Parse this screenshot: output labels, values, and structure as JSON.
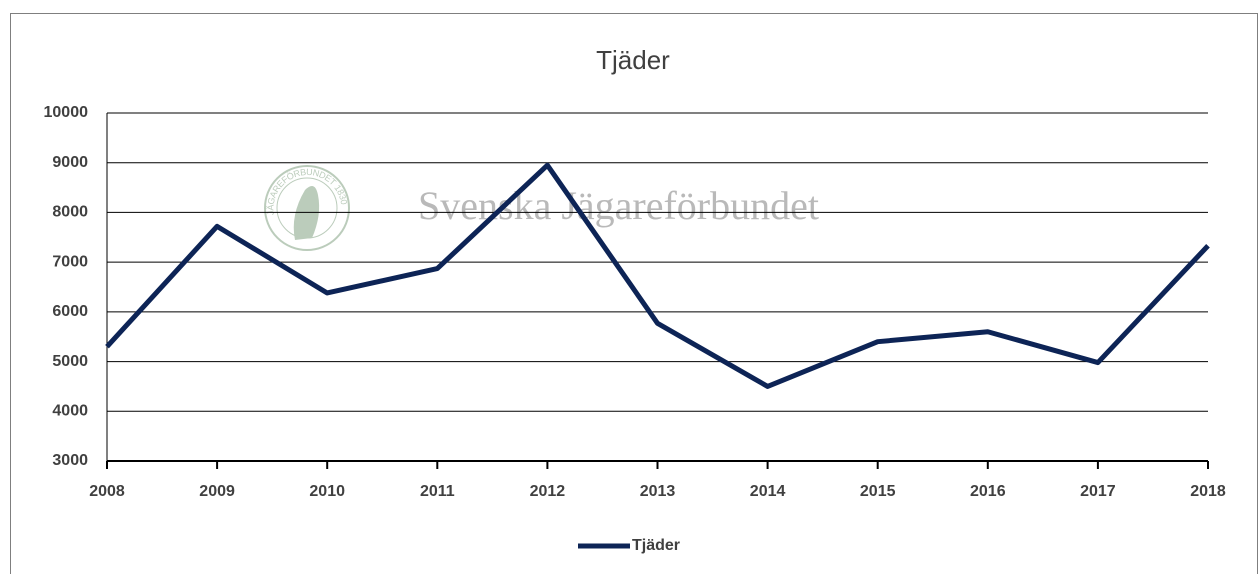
{
  "chart_data": {
    "type": "line",
    "title": "Tjäder",
    "x": [
      2008,
      2009,
      2010,
      2011,
      2012,
      2013,
      2014,
      2015,
      2016,
      2017,
      2018
    ],
    "series": [
      {
        "name": "Tjäder",
        "color": "#0d2456",
        "values": [
          5300,
          7720,
          6380,
          6870,
          8950,
          5770,
          4500,
          5400,
          5600,
          4980,
          7330
        ]
      }
    ],
    "xlim": [
      2008,
      2018
    ],
    "xticks": [
      2008,
      2009,
      2010,
      2011,
      2012,
      2013,
      2014,
      2015,
      2016,
      2017,
      2018
    ],
    "ylim": [
      3000,
      10000
    ],
    "yticks": [
      3000,
      4000,
      5000,
      6000,
      7000,
      8000,
      9000,
      10000
    ],
    "grid": true,
    "legend": "bottom",
    "watermark": {
      "text": "Svenska Jägareförbundet",
      "logo_text": "JÄGAREFÖRBUNDET 1830"
    }
  }
}
